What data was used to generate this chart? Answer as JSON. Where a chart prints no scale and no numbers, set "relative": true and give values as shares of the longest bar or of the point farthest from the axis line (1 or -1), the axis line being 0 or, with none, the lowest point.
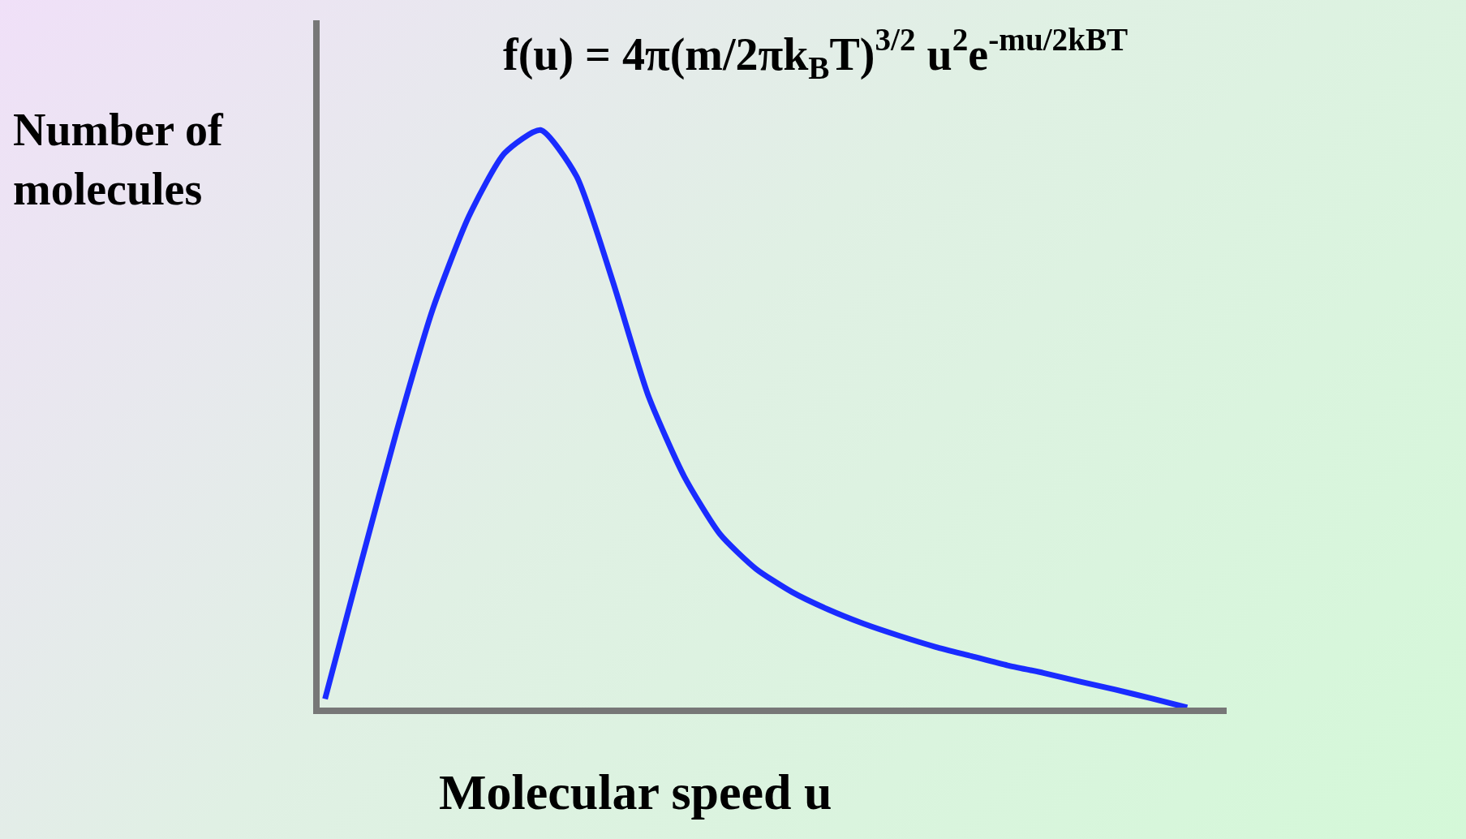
{
  "chart_data": {
    "type": "line",
    "relative": true,
    "xlabel": "Molecular speed u",
    "ylabel": "Number of molecules",
    "annotations": [
      "f(u) = 4π(m/2πk$_{B}$T)$^{3/2}$ u$^{2}$e$^{-mu/2kBT}$"
    ],
    "categories": [
      null,
      null,
      null,
      null,
      null,
      null,
      null,
      null,
      null,
      null,
      null,
      null,
      null,
      null,
      null,
      null,
      null,
      null,
      null,
      null,
      null,
      null,
      null,
      null,
      null
    ],
    "series": [
      {
        "color": "#1a2cff",
        "values": [
          0.015,
          0.25,
          0.48,
          0.69,
          0.85,
          0.96,
          1.0,
          0.92,
          0.74,
          0.54,
          0.4,
          0.3,
          0.24,
          0.2,
          0.17,
          0.145,
          0.124,
          0.105,
          0.089,
          0.073,
          0.06,
          0.045,
          0.031,
          0.016,
          0.0
        ]
      }
    ],
    "legend": false,
    "marker": "none",
    "line_style": "solid"
  }
}
